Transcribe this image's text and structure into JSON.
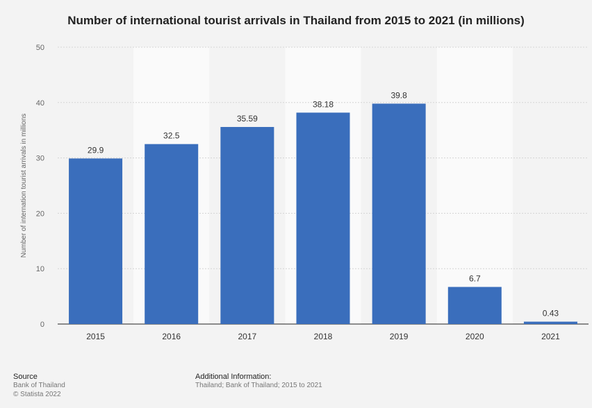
{
  "chart_data": {
    "type": "bar",
    "title": "Number of international tourist arrivals in Thailand from 2015 to 2021 (in millions)",
    "ylabel": "Number of internation tourist arrivals in millions",
    "xlabel": "",
    "categories": [
      "2015",
      "2016",
      "2017",
      "2018",
      "2019",
      "2020",
      "2021"
    ],
    "values": [
      29.9,
      32.5,
      35.59,
      38.18,
      39.8,
      6.7,
      0.43
    ],
    "value_labels": [
      "29.9",
      "32.5",
      "35.59",
      "38.18",
      "39.8",
      "6.7",
      "0.43"
    ],
    "ylim": [
      0,
      50
    ],
    "yticks": [
      0,
      10,
      20,
      30,
      40,
      50
    ],
    "grid": true,
    "bar_color": "#3a6ebc"
  },
  "footer": {
    "source_heading": "Source",
    "source_lines": [
      "Bank of Thailand",
      "© Statista 2022"
    ],
    "info_heading": "Additional Information:",
    "info_lines": [
      "Thailand; Bank of Thailand; 2015 to 2021"
    ]
  }
}
